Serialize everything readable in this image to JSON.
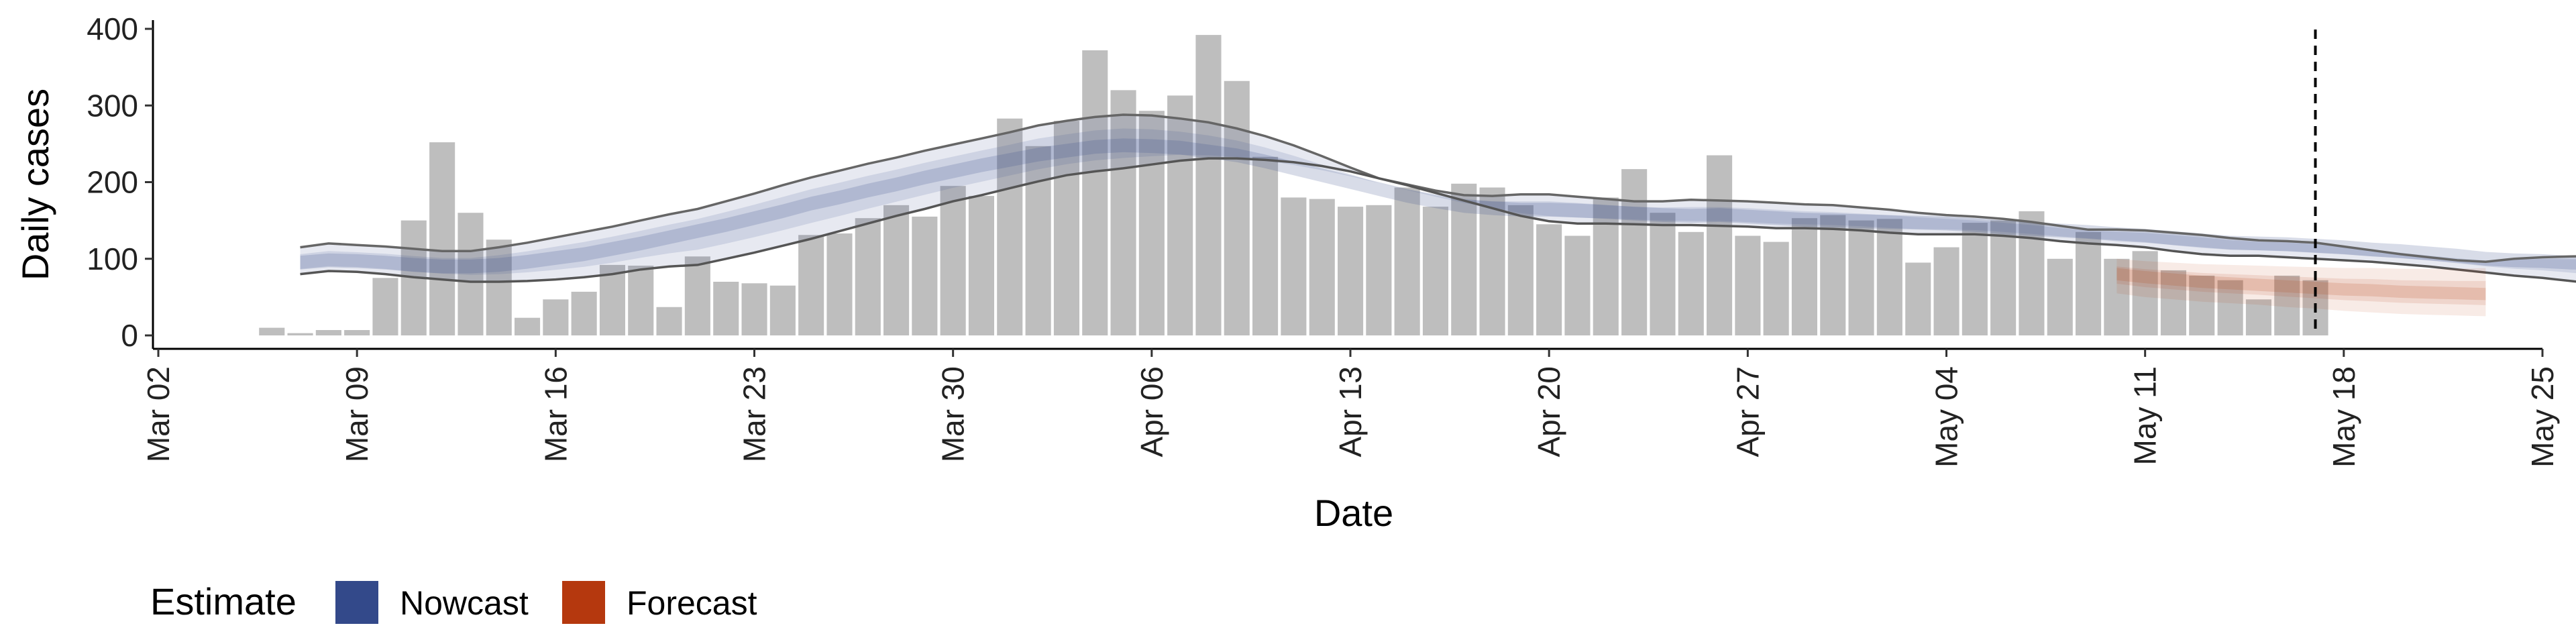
{
  "chart_data": {
    "type": "bar",
    "title": "",
    "xlabel": "Date",
    "ylabel": "Daily cases",
    "ylim": [
      0,
      410
    ],
    "yticks": [
      0,
      100,
      200,
      300,
      400
    ],
    "x_axis": {
      "type": "date",
      "range": [
        "2020-03-01",
        "2020-05-25"
      ],
      "tick_dates": [
        "2020-03-02",
        "2020-03-09",
        "2020-03-16",
        "2020-03-23",
        "2020-03-30",
        "2020-04-06",
        "2020-04-13",
        "2020-04-20",
        "2020-04-27",
        "2020-05-04",
        "2020-05-11",
        "2020-05-18",
        "2020-05-25"
      ],
      "tick_labels": [
        "Mar 02",
        "Mar 09",
        "Mar 16",
        "Mar 23",
        "Mar 30",
        "Apr 06",
        "Apr 13",
        "Apr 20",
        "Apr 27",
        "May 04",
        "May 11",
        "May 18",
        "May 25"
      ]
    },
    "bars": {
      "start_date": "2020-03-06",
      "values": [
        10,
        3,
        7,
        7,
        75,
        150,
        252,
        160,
        125,
        23,
        47,
        57,
        92,
        91,
        37,
        103,
        70,
        68,
        65,
        131,
        133,
        153,
        170,
        155,
        195,
        182,
        283,
        247,
        280,
        372,
        320,
        293,
        313,
        392,
        332,
        233,
        180,
        178,
        168,
        170,
        193,
        168,
        198,
        193,
        170,
        145,
        130,
        180,
        217,
        160,
        135,
        235,
        130,
        122,
        153,
        157,
        150,
        152,
        95,
        115,
        147,
        150,
        162,
        100,
        135,
        100,
        110,
        85,
        78,
        72,
        47,
        78,
        72
      ]
    },
    "nowcast": {
      "start_date": "2020-03-07",
      "median": [
        95,
        98,
        97,
        95,
        92,
        90,
        90,
        92,
        96,
        101,
        106,
        113,
        120,
        128,
        136,
        144,
        153,
        162,
        172,
        180,
        189,
        197,
        206,
        214,
        222,
        229,
        236,
        241,
        246,
        248,
        247,
        245,
        240,
        235,
        227,
        218,
        209,
        200,
        191,
        182,
        175,
        169,
        166,
        164,
        164,
        163,
        161,
        159,
        157,
        156,
        157,
        155,
        153,
        151,
        150,
        149,
        148,
        147,
        146,
        144,
        141,
        139,
        137,
        135,
        132,
        130,
        127,
        124,
        121,
        120,
        119,
        117,
        115,
        112,
        110,
        107,
        104,
        100,
        98,
        97,
        95,
        94,
        93
      ],
      "lower90": [
        80,
        84,
        83,
        80,
        76,
        73,
        70,
        70,
        71,
        73,
        76,
        80,
        86,
        90,
        92,
        100,
        108,
        117,
        126,
        136,
        146,
        156,
        165,
        175,
        183,
        192,
        201,
        209,
        214,
        218,
        223,
        228,
        231,
        231,
        229,
        226,
        221,
        214,
        205,
        196,
        186,
        176,
        166,
        156,
        149,
        146,
        146,
        145,
        144,
        144,
        143,
        142,
        140,
        140,
        139,
        137,
        134,
        132,
        132,
        132,
        130,
        127,
        123,
        120,
        118,
        115,
        110,
        106,
        104,
        104,
        102,
        100,
        98,
        96,
        93,
        90,
        86,
        82,
        78,
        75,
        71,
        67,
        66
      ],
      "upper90": [
        115,
        120,
        118,
        116,
        113,
        110,
        110,
        115,
        121,
        128,
        135,
        142,
        150,
        158,
        165,
        175,
        185,
        196,
        206,
        215,
        224,
        232,
        241,
        249,
        257,
        265,
        274,
        280,
        285,
        288,
        287,
        283,
        278,
        270,
        260,
        248,
        234,
        219,
        205,
        197,
        189,
        183,
        182,
        184,
        184,
        181,
        178,
        175,
        175,
        177,
        176,
        175,
        173,
        171,
        170,
        167,
        164,
        160,
        157,
        155,
        152,
        148,
        143,
        138,
        138,
        137,
        134,
        131,
        127,
        124,
        123,
        121,
        116,
        111,
        106,
        102,
        98,
        96,
        100,
        102,
        103,
        104,
        105
      ],
      "color": "#3a4e8c"
    },
    "forecast": {
      "start_date": "2020-05-10",
      "median": [
        80,
        76,
        73,
        70,
        68,
        66,
        64,
        62,
        60,
        59,
        57,
        56,
        55,
        54
      ],
      "lower": [
        55,
        50,
        47,
        44,
        42,
        40,
        37,
        35,
        32,
        30,
        28,
        27,
        26,
        25
      ],
      "upper": [
        100,
        97,
        95,
        93,
        92,
        91,
        90,
        89,
        88,
        88,
        87,
        87,
        87,
        88
      ],
      "color": "#b63c0e"
    },
    "vline_date": "2020-05-17",
    "legend": {
      "title": "Estimate",
      "position": "bottom-left",
      "items": [
        {
          "label": "Nowcast",
          "color": "#33498a"
        },
        {
          "label": "Forecast",
          "color": "#b5380e"
        }
      ]
    },
    "grid": false
  }
}
